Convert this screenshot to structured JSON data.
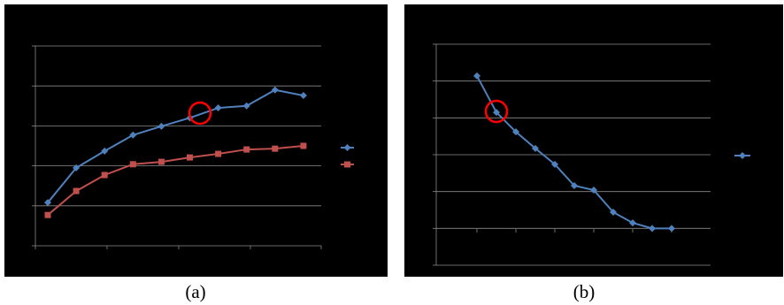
{
  "chart_data": [
    {
      "type": "line",
      "caption": "(a)",
      "categories": [
        null,
        null,
        null,
        null,
        null,
        null,
        null,
        null,
        null,
        null
      ],
      "series": [
        {
          "color": "#4f81bd",
          "marker": "diamond",
          "values": [
            1.08,
            1.95,
            2.37,
            2.77,
            2.99,
            3.2,
            3.45,
            3.5,
            3.9,
            3.76
          ]
        },
        {
          "color": "#c0504d",
          "marker": "square",
          "values": [
            0.77,
            1.37,
            1.77,
            2.04,
            2.1,
            2.21,
            2.3,
            2.41,
            2.43,
            2.5
          ]
        }
      ],
      "ylim": [
        0,
        5
      ],
      "yticks": [
        0,
        1,
        2,
        3,
        4,
        5
      ],
      "grid": true
    },
    {
      "type": "line",
      "caption": "(b)",
      "categories": [
        null,
        null,
        null,
        null,
        null,
        null,
        null,
        null,
        null,
        null,
        null
      ],
      "series": [
        {
          "color": "#4f81bd",
          "marker": "diamond",
          "values": [
            5.14,
            4.15,
            3.62,
            3.17,
            2.74,
            2.16,
            2.04,
            1.44,
            1.15,
            1.0,
            1.0
          ]
        }
      ],
      "ylim": [
        0,
        6
      ],
      "yticks": [
        0,
        1,
        2,
        3,
        4,
        5,
        6
      ],
      "grid": true
    }
  ]
}
